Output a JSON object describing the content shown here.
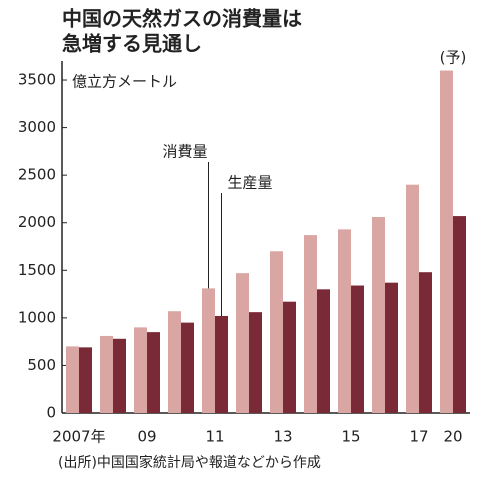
{
  "chart_data": {
    "type": "bar",
    "title": [
      "中国の天然ガスの消費量は",
      "急増する見通し"
    ],
    "y_label": "億立方メートル",
    "source": "(出所)中国国家統計局や報道などから作成",
    "forecast_label": "(予)",
    "categories": [
      "2007年",
      null,
      "09",
      null,
      "11",
      null,
      "13",
      null,
      "15",
      null,
      "17",
      "20"
    ],
    "series": [
      {
        "name": "消費量",
        "color": "#d9a6a3",
        "values": [
          700,
          810,
          900,
          1070,
          1310,
          1470,
          1700,
          1870,
          1930,
          2060,
          2400,
          3600
        ]
      },
      {
        "name": "生産量",
        "color": "#7a2a36",
        "values": [
          690,
          780,
          850,
          950,
          1020,
          1060,
          1170,
          1300,
          1340,
          1370,
          1480,
          2070
        ]
      }
    ],
    "ylim": [
      0,
      3700
    ],
    "yticks": [
      0,
      500,
      1000,
      1500,
      2000,
      2500,
      3000,
      3500
    ],
    "grid": false
  }
}
